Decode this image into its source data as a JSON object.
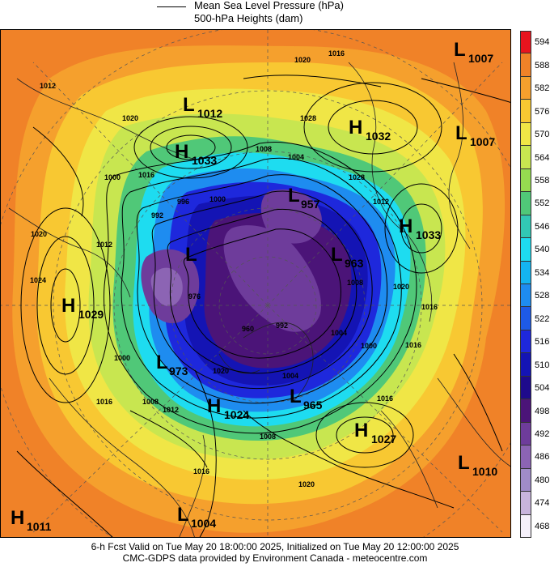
{
  "legend": {
    "line_label": "Mean Sea Level Pressure (hPa)",
    "fill_label": "500-hPa Heights (dam)"
  },
  "colorbar": {
    "levels": [
      "594",
      "588",
      "582",
      "576",
      "570",
      "564",
      "558",
      "552",
      "546",
      "540",
      "534",
      "528",
      "522",
      "516",
      "510",
      "504",
      "498",
      "492",
      "486",
      "480",
      "474",
      "468"
    ],
    "colors": [
      "#e8141e",
      "#f08228",
      "#f5a02d",
      "#f8c832",
      "#f0e646",
      "#c8e650",
      "#96dc50",
      "#50c878",
      "#32c8b4",
      "#1edcf0",
      "#14b4f0",
      "#1e8cf0",
      "#1e5ae6",
      "#1e28dc",
      "#1414b4",
      "#1e0a8c",
      "#4b1478",
      "#6e3c9b",
      "#8c64b4",
      "#a08cc8",
      "#c8b4dc",
      "#f5f0fa"
    ]
  },
  "systems": [
    {
      "type": "L",
      "value": "1007",
      "label": "L1007 top right"
    },
    {
      "type": "L",
      "value": "1012"
    },
    {
      "type": "H",
      "value": "1033"
    },
    {
      "type": "H",
      "value": "1032"
    },
    {
      "type": "L",
      "value": "1007"
    },
    {
      "type": "L",
      "value": "957"
    },
    {
      "type": "H",
      "value": "1033"
    },
    {
      "type": "L",
      "value": ""
    },
    {
      "type": "L",
      "value": "963"
    },
    {
      "type": "H",
      "value": "1029"
    },
    {
      "type": "L",
      "value": "973"
    },
    {
      "type": "H",
      "value": "1024"
    },
    {
      "type": "L",
      "value": "965"
    },
    {
      "type": "H",
      "value": "1027"
    },
    {
      "type": "L",
      "value": "1010"
    },
    {
      "type": "H",
      "value": "1011"
    },
    {
      "type": "L",
      "value": "1004"
    }
  ],
  "isobar_labels": [
    "1016",
    "1020",
    "1012",
    "1020",
    "1028",
    "1016",
    "1008",
    "1004",
    "1000",
    "996",
    "992",
    "1000",
    "1012",
    "1024",
    "1020",
    "1016",
    "1028",
    "1000",
    "1004",
    "1008",
    "1012",
    "1016",
    "1020",
    "1008",
    "1020",
    "1016",
    "992",
    "960",
    "976",
    "1012",
    "1016",
    "1004",
    "1000",
    "1008",
    "1020",
    "1016"
  ],
  "footer": {
    "line1": "6-h Fcst Valid on Tue May 20 18:00:00 2025, Initialized on Tue May 20 12:00:00 2025",
    "line2": "CMC-GDPS data provided by Environment Canada - meteocentre.com"
  }
}
